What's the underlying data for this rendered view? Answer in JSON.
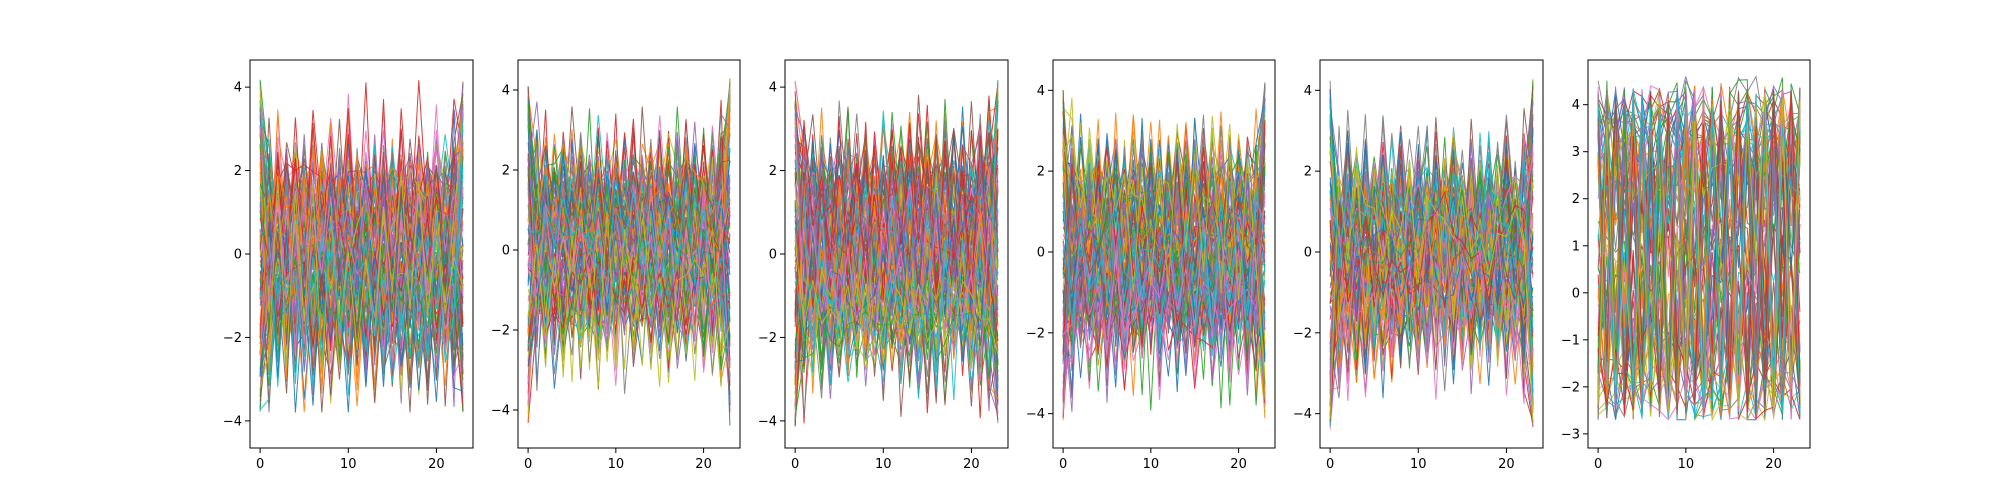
{
  "chart_data": [
    {
      "type": "line",
      "x_range": [
        0,
        23
      ],
      "xlim": [
        -1.15,
        24.15
      ],
      "ylim": [
        -4.65,
        4.65
      ],
      "xticks": [
        0,
        10,
        20
      ],
      "yticks": [
        -4,
        -2,
        0,
        2,
        4
      ],
      "band": [
        -3.0,
        3.0
      ],
      "edge_band": [
        -3.8,
        4.2
      ],
      "pattern": "spiky",
      "line_count": 120,
      "grid": false,
      "legend": "none"
    },
    {
      "type": "line",
      "x_range": [
        0,
        23
      ],
      "xlim": [
        -1.15,
        24.15
      ],
      "ylim": [
        -4.95,
        4.75
      ],
      "xticks": [
        0,
        10,
        20
      ],
      "yticks": [
        -4,
        -2,
        0,
        2,
        4
      ],
      "band": [
        -2.5,
        2.8
      ],
      "edge_band": [
        -4.4,
        4.3
      ],
      "pattern": "spiky",
      "line_count": 120,
      "grid": false,
      "legend": "none"
    },
    {
      "type": "line",
      "x_range": [
        0,
        23
      ],
      "xlim": [
        -1.15,
        24.15
      ],
      "ylim": [
        -4.65,
        4.65
      ],
      "xticks": [
        0,
        10,
        20
      ],
      "yticks": [
        -4,
        -2,
        0,
        2,
        4
      ],
      "band": [
        -3.0,
        3.1
      ],
      "edge_band": [
        -4.2,
        4.2
      ],
      "pattern": "spiky",
      "line_count": 120,
      "grid": false,
      "legend": "none"
    },
    {
      "type": "line",
      "x_range": [
        0,
        23
      ],
      "xlim": [
        -1.15,
        24.15
      ],
      "ylim": [
        -4.85,
        4.75
      ],
      "xticks": [
        0,
        10,
        20
      ],
      "yticks": [
        -4,
        -2,
        0,
        2,
        4
      ],
      "band": [
        -2.8,
        2.7
      ],
      "edge_band": [
        -4.2,
        4.2
      ],
      "pattern": "spiky",
      "line_count": 120,
      "grid": false,
      "legend": "none"
    },
    {
      "type": "line",
      "x_range": [
        0,
        23
      ],
      "xlim": [
        -1.15,
        24.15
      ],
      "ylim": [
        -4.85,
        4.75
      ],
      "xticks": [
        0,
        10,
        20
      ],
      "yticks": [
        -4,
        -2,
        0,
        2,
        4
      ],
      "band": [
        -2.8,
        2.6
      ],
      "edge_band": [
        -4.4,
        4.3
      ],
      "pattern": "spiky",
      "line_count": 120,
      "grid": false,
      "legend": "none"
    },
    {
      "type": "line",
      "x_range": [
        0,
        23
      ],
      "xlim": [
        -1.15,
        24.15
      ],
      "ylim": [
        -3.3,
        4.95
      ],
      "xticks": [
        0,
        10,
        20
      ],
      "yticks": [
        -3,
        -2,
        -1,
        0,
        1,
        2,
        3,
        4
      ],
      "band": [
        -2.7,
        4.4
      ],
      "edge_band": [
        -2.7,
        4.6
      ],
      "pattern": "oscillating",
      "line_count": 120,
      "grid": false,
      "legend": "none"
    }
  ],
  "palette": [
    "#1f77b4",
    "#ff7f0e",
    "#2ca02c",
    "#d62728",
    "#9467bd",
    "#8c564b",
    "#e377c2",
    "#7f7f7f",
    "#bcbd22",
    "#17becf"
  ]
}
